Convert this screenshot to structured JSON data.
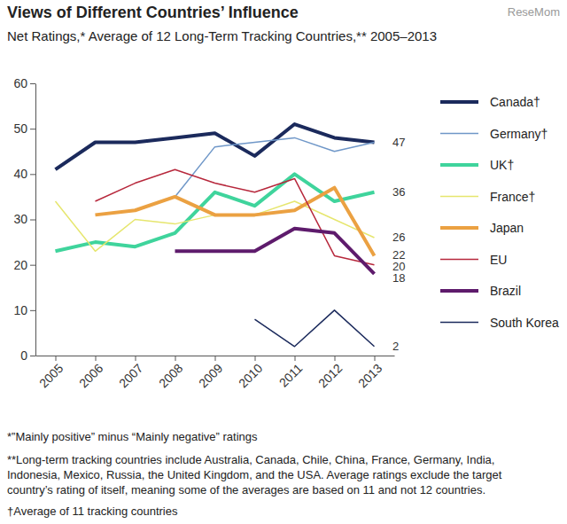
{
  "chart_data": {
    "type": "line",
    "title": "Views of Different Countries’ Influence",
    "subtitle": "Net Ratings,* Average of 12 Long-Term Tracking Countries,** 2005–2013",
    "watermark": "ReseMom",
    "categories": [
      "2005",
      "2006",
      "2007",
      "2008",
      "2009",
      "2010",
      "2011",
      "2012",
      "2013"
    ],
    "ylim": [
      0,
      60
    ],
    "yticks": [
      0,
      10,
      20,
      30,
      40,
      50,
      60
    ],
    "grid": false,
    "legend": "right",
    "series": [
      {
        "name": "Canada†",
        "color": "#1b2a5c",
        "line_style": "thick",
        "values": [
          41,
          47,
          47,
          48,
          49,
          44,
          51,
          48,
          47
        ]
      },
      {
        "name": "Germany†",
        "color": "#6f97c8",
        "line_style": "thin",
        "values": [
          null,
          null,
          null,
          35,
          46,
          47,
          48,
          45,
          47
        ]
      },
      {
        "name": "UK†",
        "color": "#3fd49c",
        "line_style": "thick",
        "values": [
          23,
          25,
          24,
          27,
          36,
          33,
          40,
          34,
          36
        ]
      },
      {
        "name": "France†",
        "color": "#e6e66e",
        "line_style": "thin",
        "values": [
          34,
          23,
          30,
          29,
          31,
          31,
          34,
          30,
          26
        ]
      },
      {
        "name": "Japan",
        "color": "#eba142",
        "line_style": "thick",
        "values": [
          null,
          31,
          32,
          35,
          31,
          31,
          32,
          37,
          22
        ]
      },
      {
        "name": "EU",
        "color": "#b7283c",
        "line_style": "thin",
        "values": [
          null,
          34,
          38,
          41,
          38,
          36,
          39,
          22,
          20
        ]
      },
      {
        "name": "Brazil",
        "color": "#5e1b6c",
        "line_style": "thick",
        "values": [
          null,
          null,
          null,
          23,
          23,
          23,
          28,
          27,
          18
        ]
      },
      {
        "name": "South Korea",
        "color": "#1b2a5c",
        "line_style": "thin",
        "values": [
          null,
          null,
          null,
          null,
          null,
          8,
          2,
          10,
          2
        ]
      }
    ],
    "end_labels": [
      47,
      36,
      26,
      22,
      20,
      18,
      2
    ],
    "footnotes": [
      "*”Mainly positive” minus “Mainly negative” ratings",
      "**Long-term tracking countries include Australia, Canada, Chile, China, France, Germany, India,",
      "Indonesia, Mexico, Russia, the United Kingdom, and the USA. Average ratings exclude the target",
      "country’s rating of itself, meaning some of the averages are based on 11 and not 12 countries.",
      "†Average of 11 tracking countries"
    ]
  }
}
